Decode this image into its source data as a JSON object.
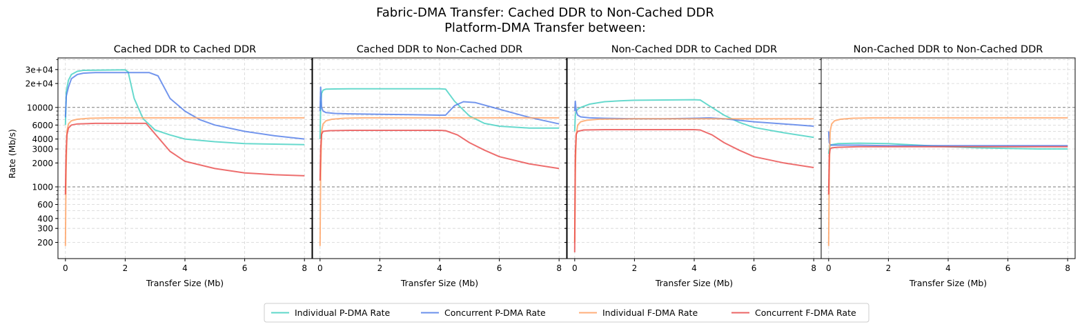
{
  "figure": {
    "title_line1": "Fabric-DMA Transfer: Cached DDR to Non-Cached DDR",
    "title_line2": "Platform-DMA Transfer between:"
  },
  "chart_data": {
    "type": "line",
    "xlabel": "Transfer Size (Mb)",
    "ylabel": "Rate (Mb/s)",
    "yscale": "log",
    "xlim": [
      -0.25,
      8.25
    ],
    "ylim": [
      125,
      42000
    ],
    "x_ticks": [
      0,
      2,
      4,
      6,
      8
    ],
    "x_tick_labels": [
      "0",
      "2",
      "4",
      "6",
      "8"
    ],
    "y_ticks": [
      200,
      300,
      400,
      600,
      1000,
      2000,
      3000,
      4000,
      6000,
      10000,
      20000,
      30000
    ],
    "y_tick_labels": [
      "200",
      "300",
      "400",
      "600",
      "1000",
      "2000",
      "3000",
      "4000",
      "6000",
      "10000",
      "2e+04",
      "3e+04"
    ],
    "reference_lines": [
      1000,
      10000
    ],
    "legend": {
      "position": "bottom-center",
      "entries": [
        "Individual P-DMA Rate",
        "Concurrent P-DMA Rate",
        "Individual F-DMA Rate",
        "Concurrent F-DMA Rate"
      ]
    },
    "colors": {
      "Individual P-DMA Rate": "#40d0c0",
      "Concurrent P-DMA Rate": "#4f7be8",
      "Individual F-DMA Rate": "#ffa060",
      "Concurrent F-DMA Rate": "#e84848"
    },
    "panels": [
      {
        "title": "Cached DDR to Cached DDR",
        "series": [
          {
            "name": "Individual P-DMA Rate",
            "x": [
              0,
              0.03,
              0.1,
              0.2,
              0.4,
              0.6,
              1,
              1.5,
              2,
              2.1,
              2.3,
              2.6,
              3,
              3.5,
              4,
              5,
              6,
              7,
              8
            ],
            "y": [
              6000,
              16000,
              22000,
              26000,
              28500,
              29300,
              29500,
              29600,
              29700,
              28000,
              13000,
              7200,
              5200,
              4500,
              4000,
              3700,
              3500,
              3450,
              3400
            ]
          },
          {
            "name": "Concurrent P-DMA Rate",
            "x": [
              0,
              0.03,
              0.1,
              0.2,
              0.4,
              0.6,
              1,
              2,
              2.8,
              3.1,
              3.5,
              4,
              4.5,
              5,
              6,
              7,
              8
            ],
            "y": [
              7500,
              14000,
              18000,
              23000,
              26000,
              27000,
              27500,
              27500,
              27500,
              25000,
              13000,
              9000,
              7000,
              6000,
              5000,
              4400,
              4000
            ]
          },
          {
            "name": "Individual F-DMA Rate",
            "x": [
              0,
              0.02,
              0.05,
              0.1,
              0.2,
              0.4,
              0.8,
              1.5,
              2,
              4,
              6,
              8
            ],
            "y": [
              180,
              1500,
              5000,
              6200,
              6800,
              7100,
              7300,
              7400,
              7400,
              7400,
              7400,
              7400
            ]
          },
          {
            "name": "Concurrent F-DMA Rate",
            "x": [
              0,
              0.02,
              0.05,
              0.1,
              0.2,
              0.4,
              1,
              2,
              2.7,
              3.1,
              3.5,
              4,
              5,
              6,
              7,
              8
            ],
            "y": [
              800,
              2500,
              4500,
              5500,
              6000,
              6200,
              6300,
              6300,
              6300,
              4200,
              2800,
              2100,
              1700,
              1500,
              1420,
              1380
            ]
          }
        ]
      },
      {
        "title": "Cached DDR to Non-Cached DDR",
        "series": [
          {
            "name": "Individual P-DMA Rate",
            "x": [
              0,
              0.02,
              0.05,
              0.1,
              0.2,
              0.5,
              1,
              2,
              3,
              4,
              4.2,
              4.5,
              5,
              5.5,
              6,
              7,
              8
            ],
            "y": [
              4000,
              10000,
              15000,
              16500,
              17000,
              17100,
              17200,
              17200,
              17200,
              17200,
              17000,
              12000,
              7800,
              6300,
              5800,
              5500,
              5500
            ]
          },
          {
            "name": "Concurrent P-DMA Rate",
            "x": [
              0,
              0.02,
              0.05,
              0.1,
              0.2,
              0.5,
              1,
              2,
              3,
              4,
              4.2,
              4.5,
              4.8,
              5.2,
              6,
              7,
              8
            ],
            "y": [
              9000,
              18000,
              10000,
              9000,
              8600,
              8400,
              8300,
              8200,
              8100,
              8000,
              8000,
              10500,
              11800,
              11500,
              9500,
              7500,
              6200
            ]
          },
          {
            "name": "Individual F-DMA Rate",
            "x": [
              0,
              0.02,
              0.05,
              0.1,
              0.2,
              0.4,
              0.8,
              1.5,
              2,
              4,
              6,
              8
            ],
            "y": [
              180,
              1500,
              5000,
              6200,
              6800,
              7100,
              7300,
              7400,
              7400,
              7400,
              7400,
              7400
            ]
          },
          {
            "name": "Concurrent F-DMA Rate",
            "x": [
              0,
              0.02,
              0.05,
              0.1,
              0.3,
              1,
              2,
              3,
              4,
              4.2,
              4.6,
              5,
              5.5,
              6,
              7,
              8
            ],
            "y": [
              1200,
              3000,
              4600,
              5000,
              5100,
              5150,
              5150,
              5150,
              5150,
              5100,
              4500,
              3600,
              2900,
              2400,
              1950,
              1700
            ]
          }
        ]
      },
      {
        "title": "Non-Cached DDR to Cached DDR",
        "series": [
          {
            "name": "Individual P-DMA Rate",
            "x": [
              0,
              0.02,
              0.05,
              0.1,
              0.2,
              0.5,
              1,
              1.5,
              2,
              3,
              4,
              4.2,
              4.5,
              5,
              5.5,
              6,
              7,
              8
            ],
            "y": [
              5000,
              8000,
              9000,
              9500,
              10000,
              11000,
              11800,
              12100,
              12300,
              12400,
              12500,
              12400,
              10500,
              8000,
              6500,
              5600,
              4800,
              4200
            ]
          },
          {
            "name": "Concurrent P-DMA Rate",
            "x": [
              0,
              0.02,
              0.05,
              0.1,
              0.2,
              0.5,
              1,
              2,
              3,
              4,
              4.5,
              5,
              6,
              7,
              8
            ],
            "y": [
              9000,
              12000,
              9000,
              8000,
              7600,
              7400,
              7300,
              7200,
              7200,
              7300,
              7400,
              7200,
              6600,
              6200,
              5800
            ]
          },
          {
            "name": "Individual F-DMA Rate",
            "x": [
              0,
              0.02,
              0.05,
              0.1,
              0.2,
              0.4,
              0.8,
              1.5,
              2,
              4,
              6,
              8
            ],
            "y": [
              200,
              1600,
              4500,
              6000,
              6600,
              6900,
              7100,
              7150,
              7200,
              7200,
              7200,
              7200
            ]
          },
          {
            "name": "Concurrent F-DMA Rate",
            "x": [
              0,
              0.02,
              0.05,
              0.1,
              0.3,
              1,
              2,
              3,
              4,
              4.2,
              4.6,
              5,
              5.5,
              6,
              7,
              8
            ],
            "y": [
              150,
              2500,
              4600,
              5000,
              5200,
              5250,
              5250,
              5250,
              5250,
              5200,
              4500,
              3600,
              2900,
              2400,
              2000,
              1750
            ]
          }
        ]
      },
      {
        "title": "Non-Cached DDR to Non-Cached DDR",
        "series": [
          {
            "name": "Individual P-DMA Rate",
            "x": [
              0,
              0.02,
              0.05,
              0.1,
              0.3,
              1,
              2,
              3,
              4,
              5,
              6,
              7,
              8
            ],
            "y": [
              2600,
              3000,
              3300,
              3400,
              3500,
              3550,
              3500,
              3350,
              3200,
              3100,
              3050,
              3000,
              3000
            ]
          },
          {
            "name": "Concurrent P-DMA Rate",
            "x": [
              0,
              0.02,
              0.05,
              0.1,
              0.3,
              1,
              2,
              3,
              4,
              5,
              6,
              7,
              8
            ],
            "y": [
              5000,
              3600,
              3400,
              3350,
              3350,
              3350,
              3300,
              3300,
              3300,
              3300,
              3300,
              3300,
              3300
            ]
          },
          {
            "name": "Individual F-DMA Rate",
            "x": [
              0,
              0.02,
              0.05,
              0.1,
              0.2,
              0.4,
              0.8,
              1.5,
              2,
              4,
              6,
              8
            ],
            "y": [
              180,
              1500,
              5000,
              6200,
              6800,
              7100,
              7300,
              7400,
              7400,
              7400,
              7400,
              7400
            ]
          },
          {
            "name": "Concurrent F-DMA Rate",
            "x": [
              0,
              0.02,
              0.05,
              0.1,
              0.3,
              1,
              2,
              4,
              6,
              8
            ],
            "y": [
              800,
              2500,
              3000,
              3100,
              3150,
              3200,
              3200,
              3200,
              3200,
              3200
            ]
          }
        ]
      }
    ]
  }
}
